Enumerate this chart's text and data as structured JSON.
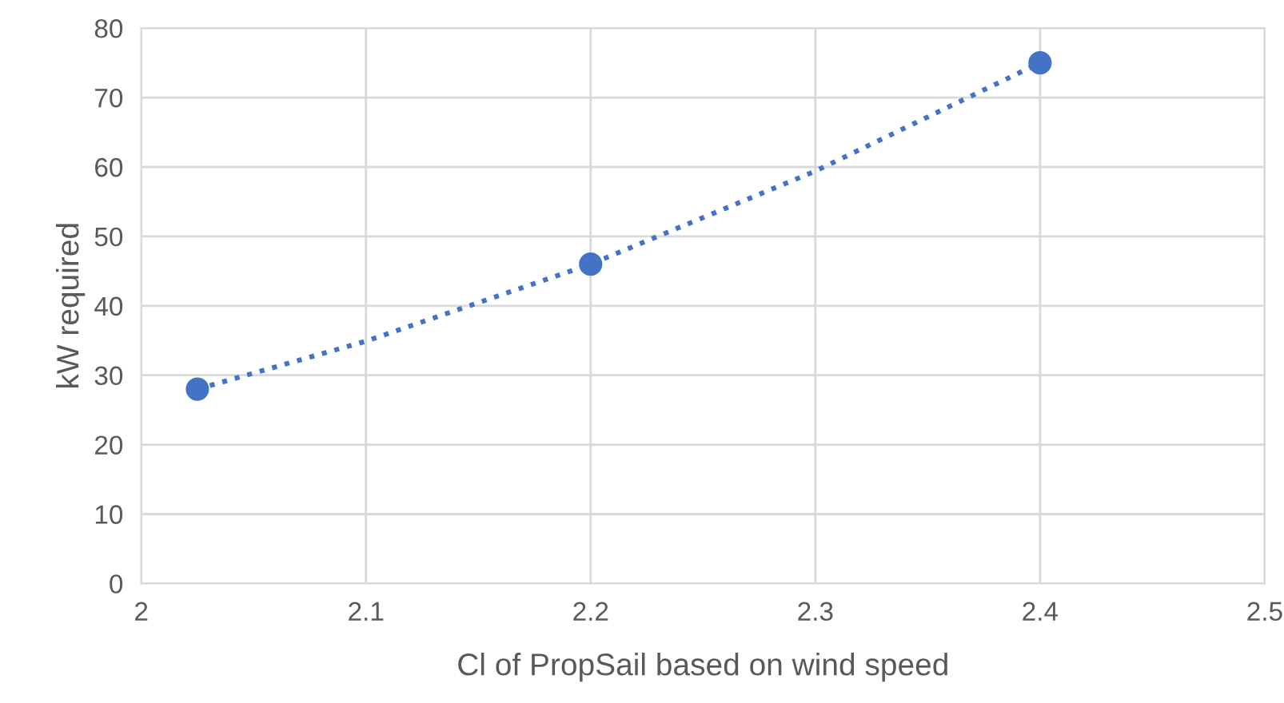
{
  "chart_data": {
    "type": "scatter",
    "xlabel": "Cl of PropSail based on wind speed",
    "ylabel": "kW required",
    "x": [
      2.025,
      2.2,
      2.4
    ],
    "series": [
      {
        "color": "#4472c4",
        "values": [
          28,
          46,
          75
        ],
        "marker": "circle"
      },
      {
        "type": "line",
        "color": "#4472c4",
        "x": [
          2.025,
          2.1,
          2.2,
          2.3,
          2.4
        ],
        "values": [
          28,
          34.9,
          46,
          59.4,
          75
        ],
        "line_style": "dotted",
        "marker": "none"
      }
    ],
    "xlim": [
      2,
      2.5
    ],
    "xticks": [
      2,
      2.1,
      2.2,
      2.3,
      2.4,
      2.5
    ],
    "ylim": [
      0,
      80
    ],
    "yticks": [
      0,
      10,
      20,
      30,
      40,
      50,
      60,
      70,
      80
    ],
    "grid": true,
    "legend": false
  }
}
